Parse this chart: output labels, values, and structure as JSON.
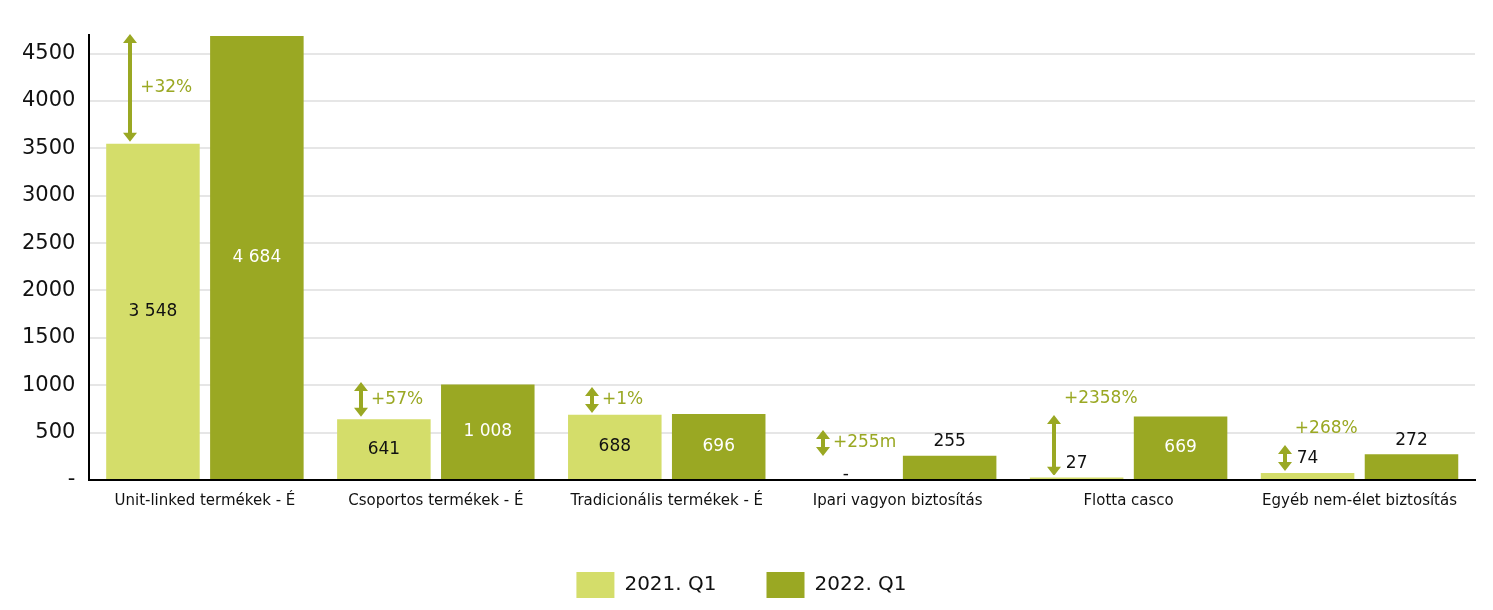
{
  "chart_data": {
    "type": "bar",
    "categories": [
      "Unit-linked termékek - É",
      "Csoportos termékek - É",
      "Tradicionális termékek - É",
      "Ipari vagyon biztosítás",
      "Flotta casco",
      "Egyéb nem-élet biztosítás"
    ],
    "series": [
      {
        "name": "2021. Q1",
        "color": "#d4dd6a",
        "values": [
          3548,
          641,
          688,
          null,
          27,
          74
        ],
        "value_labels": [
          "3 548",
          "641",
          "688",
          "-",
          "27",
          "74"
        ]
      },
      {
        "name": "2022. Q1",
        "color": "#9aa823",
        "values": [
          4684,
          1008,
          696,
          255,
          669,
          272
        ],
        "value_labels": [
          "4 684",
          "1 008",
          "696",
          "255",
          "669",
          "272"
        ]
      }
    ],
    "ylim": [
      0,
      4700
    ],
    "yticks": [
      {
        "value": 0,
        "label": "-"
      },
      500,
      1000,
      1500,
      2000,
      2500,
      3000,
      3500,
      4000,
      4500
    ],
    "grid": "y",
    "legend": "bottom",
    "annotations": [
      "+32%",
      "+57%",
      "+1%",
      "+255m",
      "+2358%",
      "+268%"
    ]
  }
}
